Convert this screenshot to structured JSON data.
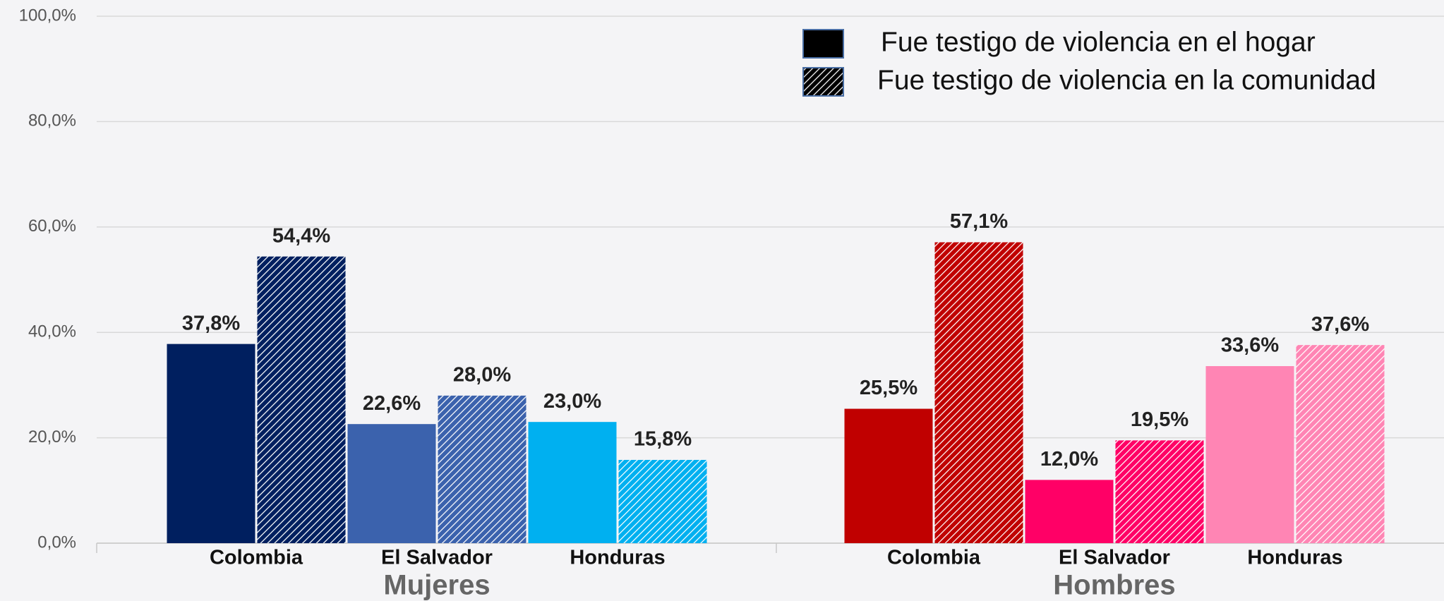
{
  "chart_data": {
    "type": "bar",
    "groups": [
      "Mujeres",
      "Hombres"
    ],
    "categories": [
      "Colombia",
      "El Salvador",
      "Honduras",
      "Colombia",
      "El Salvador",
      "Honduras"
    ],
    "series": [
      {
        "name": "Fue testigo de violencia en el hogar",
        "color": "#000000",
        "hatch": false,
        "bar_colors": [
          "#001f5f",
          "#3b62ad",
          "#00b0f0",
          "#c00000",
          "#ff0066",
          "#ff85b4"
        ],
        "values": [
          37.8,
          22.6,
          23.0,
          25.5,
          12.0,
          33.6
        ],
        "value_labels": [
          "37,8%",
          "22,6%",
          "23,0%",
          "25,5%",
          "12,0%",
          "33,6%"
        ]
      },
      {
        "name": "Fue testigo de violencia en la comunidad",
        "color": "#000000",
        "hatch": true,
        "bar_colors": [
          "#001f5f",
          "#3b62ad",
          "#00b0f0",
          "#c00000",
          "#ff0066",
          "#ff85b4"
        ],
        "values": [
          54.4,
          28.0,
          15.8,
          57.1,
          19.5,
          37.6
        ],
        "value_labels": [
          "54,4%",
          "28,0%",
          "15,8%",
          "57,1%",
          "19,5%",
          "37,6%"
        ]
      }
    ],
    "ylim": [
      0,
      100
    ],
    "yticks": [
      {
        "value": 0,
        "label": "0,0%"
      },
      {
        "value": 20,
        "label": "20,0%"
      },
      {
        "value": 40,
        "label": "40,0%"
      },
      {
        "value": 60,
        "label": "60,0%"
      },
      {
        "value": 80,
        "label": "80,0%"
      },
      {
        "value": 100,
        "label": "100,0%"
      }
    ],
    "grid": true,
    "legend": "top-right"
  }
}
